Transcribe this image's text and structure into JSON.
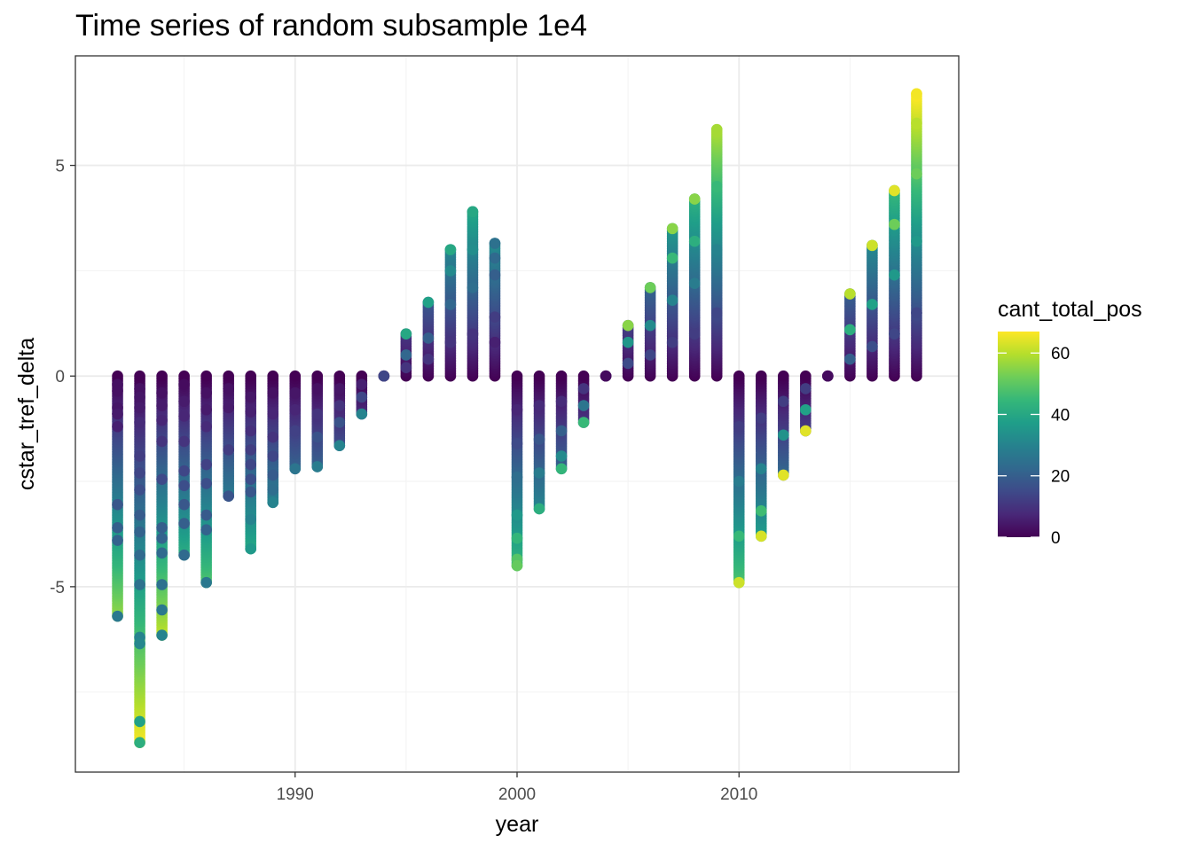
{
  "chart_data": {
    "type": "scatter",
    "title": "Time series of random subsample 1e4",
    "xlabel": "year",
    "ylabel": "cstar_tref_delta",
    "xlim": [
      1980.1,
      2019.9
    ],
    "ylim": [
      -9.4,
      7.6
    ],
    "x_ticks": [
      1990,
      2000,
      2010
    ],
    "x_tick_labels": [
      "1990",
      "2000",
      "2010"
    ],
    "y_ticks": [
      -5,
      0,
      5
    ],
    "y_tick_labels": [
      "-5",
      "0",
      "5"
    ],
    "grid": true,
    "legend": {
      "title": "cant_total_pos",
      "position": "right",
      "range": [
        0,
        67
      ],
      "breaks": [
        0,
        20,
        40,
        60
      ],
      "break_labels": [
        "0",
        "20",
        "40",
        "60"
      ],
      "palette": [
        "#440154",
        "#482878",
        "#3E4A89",
        "#31688E",
        "#26828E",
        "#1F9E89",
        "#35B779",
        "#6DCD59",
        "#B4DE2C",
        "#FDE725"
      ]
    },
    "year_extent": [
      {
        "year": 1982,
        "min": -5.7,
        "max": 0.0
      },
      {
        "year": 1983,
        "min": -8.7,
        "max": 0.0
      },
      {
        "year": 1984,
        "min": -6.15,
        "max": 0.0
      },
      {
        "year": 1985,
        "min": -4.25,
        "max": 0.0
      },
      {
        "year": 1986,
        "min": -4.9,
        "max": 0.0
      },
      {
        "year": 1987,
        "min": -2.85,
        "max": 0.0
      },
      {
        "year": 1988,
        "min": -4.1,
        "max": 0.0
      },
      {
        "year": 1989,
        "min": -3.0,
        "max": 0.0
      },
      {
        "year": 1990,
        "min": -2.2,
        "max": 0.0
      },
      {
        "year": 1991,
        "min": -2.15,
        "max": 0.0
      },
      {
        "year": 1992,
        "min": -1.65,
        "max": 0.0
      },
      {
        "year": 1993,
        "min": -0.9,
        "max": 0.0
      },
      {
        "year": 1994,
        "min": 0.0,
        "max": 0.0
      },
      {
        "year": 1995,
        "min": 0.0,
        "max": 1.0
      },
      {
        "year": 1996,
        "min": 0.0,
        "max": 1.75
      },
      {
        "year": 1997,
        "min": 0.0,
        "max": 3.0
      },
      {
        "year": 1998,
        "min": 0.0,
        "max": 3.9
      },
      {
        "year": 1999,
        "min": 0.0,
        "max": 3.15
      },
      {
        "year": 2000,
        "min": -4.5,
        "max": 0.0
      },
      {
        "year": 2001,
        "min": -3.15,
        "max": 0.0
      },
      {
        "year": 2002,
        "min": -2.2,
        "max": 0.0
      },
      {
        "year": 2003,
        "min": -1.1,
        "max": 0.0
      },
      {
        "year": 2004,
        "min": 0.0,
        "max": 0.0
      },
      {
        "year": 2005,
        "min": 0.0,
        "max": 1.2
      },
      {
        "year": 2006,
        "min": 0.0,
        "max": 2.1
      },
      {
        "year": 2007,
        "min": 0.0,
        "max": 3.5
      },
      {
        "year": 2008,
        "min": 0.0,
        "max": 4.2
      },
      {
        "year": 2009,
        "min": 0.0,
        "max": 5.85
      },
      {
        "year": 2010,
        "min": -4.9,
        "max": 0.0
      },
      {
        "year": 2011,
        "min": -3.8,
        "max": 0.0
      },
      {
        "year": 2012,
        "min": -2.35,
        "max": 0.0
      },
      {
        "year": 2013,
        "min": -1.3,
        "max": 0.0
      },
      {
        "year": 2014,
        "min": 0.0,
        "max": 0.0
      },
      {
        "year": 2015,
        "min": 0.0,
        "max": 1.95
      },
      {
        "year": 2016,
        "min": 0.0,
        "max": 3.1
      },
      {
        "year": 2017,
        "min": 0.0,
        "max": 4.4
      },
      {
        "year": 2018,
        "min": 0.0,
        "max": 6.7
      }
    ],
    "points": [
      {
        "x": 1982,
        "y": -0.2,
        "c": 3
      },
      {
        "x": 1982,
        "y": -0.35,
        "c": 3
      },
      {
        "x": 1982,
        "y": -0.75,
        "c": 4
      },
      {
        "x": 1982,
        "y": -0.9,
        "c": 5
      },
      {
        "x": 1982,
        "y": -1.2,
        "c": 6
      },
      {
        "x": 1982,
        "y": -3.05,
        "c": 18
      },
      {
        "x": 1982,
        "y": -3.6,
        "c": 20
      },
      {
        "x": 1982,
        "y": -3.9,
        "c": 21
      },
      {
        "x": 1982,
        "y": -5.7,
        "c": 27
      },
      {
        "x": 1983,
        "y": -0.3,
        "c": 3
      },
      {
        "x": 1983,
        "y": -0.5,
        "c": 4
      },
      {
        "x": 1983,
        "y": -0.75,
        "c": 5
      },
      {
        "x": 1983,
        "y": -1.1,
        "c": 8
      },
      {
        "x": 1983,
        "y": -1.9,
        "c": 12
      },
      {
        "x": 1983,
        "y": -2.3,
        "c": 14
      },
      {
        "x": 1983,
        "y": -2.7,
        "c": 16
      },
      {
        "x": 1983,
        "y": -3.3,
        "c": 19
      },
      {
        "x": 1983,
        "y": -3.7,
        "c": 21
      },
      {
        "x": 1983,
        "y": -4.25,
        "c": 23
      },
      {
        "x": 1983,
        "y": -4.95,
        "c": 25
      },
      {
        "x": 1983,
        "y": -6.2,
        "c": 30
      },
      {
        "x": 1983,
        "y": -6.35,
        "c": 31
      },
      {
        "x": 1983,
        "y": -8.2,
        "c": 38
      },
      {
        "x": 1983,
        "y": -8.7,
        "c": 42
      },
      {
        "x": 1984,
        "y": -0.4,
        "c": 3
      },
      {
        "x": 1984,
        "y": -0.7,
        "c": 5
      },
      {
        "x": 1984,
        "y": -1.05,
        "c": 7
      },
      {
        "x": 1984,
        "y": -1.55,
        "c": 10
      },
      {
        "x": 1984,
        "y": -2.45,
        "c": 15
      },
      {
        "x": 1984,
        "y": -3.6,
        "c": 20
      },
      {
        "x": 1984,
        "y": -3.85,
        "c": 21
      },
      {
        "x": 1984,
        "y": -4.2,
        "c": 23
      },
      {
        "x": 1984,
        "y": -4.95,
        "c": 25
      },
      {
        "x": 1984,
        "y": -5.55,
        "c": 27
      },
      {
        "x": 1984,
        "y": -6.15,
        "c": 30
      },
      {
        "x": 1985,
        "y": -0.2,
        "c": 2
      },
      {
        "x": 1985,
        "y": -0.6,
        "c": 5
      },
      {
        "x": 1985,
        "y": -0.95,
        "c": 7
      },
      {
        "x": 1985,
        "y": -1.55,
        "c": 10
      },
      {
        "x": 1985,
        "y": -2.25,
        "c": 14
      },
      {
        "x": 1985,
        "y": -2.6,
        "c": 16
      },
      {
        "x": 1985,
        "y": -3.05,
        "c": 18
      },
      {
        "x": 1985,
        "y": -3.5,
        "c": 20
      },
      {
        "x": 1985,
        "y": -4.25,
        "c": 23
      },
      {
        "x": 1986,
        "y": -0.4,
        "c": 3
      },
      {
        "x": 1986,
        "y": -0.8,
        "c": 5
      },
      {
        "x": 1986,
        "y": -1.2,
        "c": 8
      },
      {
        "x": 1986,
        "y": -2.1,
        "c": 13
      },
      {
        "x": 1986,
        "y": -2.55,
        "c": 16
      },
      {
        "x": 1986,
        "y": -3.3,
        "c": 19
      },
      {
        "x": 1986,
        "y": -3.65,
        "c": 21
      },
      {
        "x": 1986,
        "y": -4.9,
        "c": 27
      },
      {
        "x": 1987,
        "y": -0.3,
        "c": 3
      },
      {
        "x": 1987,
        "y": -0.75,
        "c": 5
      },
      {
        "x": 1987,
        "y": -1.75,
        "c": 12
      },
      {
        "x": 1987,
        "y": -2.85,
        "c": 17
      },
      {
        "x": 1988,
        "y": -0.5,
        "c": 4
      },
      {
        "x": 1988,
        "y": -0.85,
        "c": 6
      },
      {
        "x": 1988,
        "y": -1.3,
        "c": 9
      },
      {
        "x": 1988,
        "y": -1.75,
        "c": 12
      },
      {
        "x": 1988,
        "y": -2.1,
        "c": 14
      },
      {
        "x": 1988,
        "y": -2.45,
        "c": 16
      },
      {
        "x": 1988,
        "y": -2.75,
        "c": 18
      },
      {
        "x": 1988,
        "y": -3.4,
        "c": 30
      },
      {
        "x": 1988,
        "y": -4.1,
        "c": 36
      },
      {
        "x": 1989,
        "y": -0.4,
        "c": 3
      },
      {
        "x": 1989,
        "y": -0.9,
        "c": 7
      },
      {
        "x": 1989,
        "y": -1.45,
        "c": 10
      },
      {
        "x": 1989,
        "y": -1.9,
        "c": 14
      },
      {
        "x": 1989,
        "y": -2.35,
        "c": 19
      },
      {
        "x": 1989,
        "y": -2.7,
        "c": 24
      },
      {
        "x": 1989,
        "y": -3.0,
        "c": 30
      },
      {
        "x": 1990,
        "y": -0.4,
        "c": 4
      },
      {
        "x": 1990,
        "y": -0.8,
        "c": 7
      },
      {
        "x": 1990,
        "y": -1.3,
        "c": 13
      },
      {
        "x": 1990,
        "y": -2.2,
        "c": 26
      },
      {
        "x": 1991,
        "y": -0.3,
        "c": 3
      },
      {
        "x": 1991,
        "y": -0.9,
        "c": 10
      },
      {
        "x": 1991,
        "y": -1.45,
        "c": 17
      },
      {
        "x": 1991,
        "y": -2.15,
        "c": 28
      },
      {
        "x": 1992,
        "y": -0.3,
        "c": 4
      },
      {
        "x": 1992,
        "y": -0.7,
        "c": 10
      },
      {
        "x": 1992,
        "y": -1.1,
        "c": 17
      },
      {
        "x": 1992,
        "y": -1.65,
        "c": 30
      },
      {
        "x": 1993,
        "y": -0.2,
        "c": 6
      },
      {
        "x": 1993,
        "y": -0.5,
        "c": 14
      },
      {
        "x": 1993,
        "y": -0.9,
        "c": 30
      },
      {
        "x": 1994,
        "y": 0.0,
        "c": 14
      },
      {
        "x": 1995,
        "y": 0.2,
        "c": 10
      },
      {
        "x": 1995,
        "y": 0.5,
        "c": 22
      },
      {
        "x": 1995,
        "y": 1.0,
        "c": 40
      },
      {
        "x": 1996,
        "y": 0.4,
        "c": 10
      },
      {
        "x": 1996,
        "y": 0.9,
        "c": 20
      },
      {
        "x": 1996,
        "y": 1.75,
        "c": 38
      },
      {
        "x": 1997,
        "y": 0.8,
        "c": 10
      },
      {
        "x": 1997,
        "y": 1.7,
        "c": 22
      },
      {
        "x": 1997,
        "y": 2.5,
        "c": 32
      },
      {
        "x": 1997,
        "y": 3.0,
        "c": 40
      },
      {
        "x": 1998,
        "y": 1.0,
        "c": 10
      },
      {
        "x": 1998,
        "y": 2.1,
        "c": 24
      },
      {
        "x": 1998,
        "y": 3.0,
        "c": 33
      },
      {
        "x": 1998,
        "y": 3.9,
        "c": 40
      },
      {
        "x": 1999,
        "y": 0.8,
        "c": 6
      },
      {
        "x": 1999,
        "y": 1.4,
        "c": 12
      },
      {
        "x": 1999,
        "y": 2.4,
        "c": 20
      },
      {
        "x": 1999,
        "y": 2.8,
        "c": 23
      },
      {
        "x": 1999,
        "y": 3.15,
        "c": 25
      },
      {
        "x": 2000,
        "y": -0.8,
        "c": 7
      },
      {
        "x": 2000,
        "y": -1.6,
        "c": 15
      },
      {
        "x": 2000,
        "y": -2.4,
        "c": 24
      },
      {
        "x": 2000,
        "y": -3.3,
        "c": 36
      },
      {
        "x": 2000,
        "y": -3.85,
        "c": 44
      },
      {
        "x": 2000,
        "y": -4.35,
        "c": 49
      },
      {
        "x": 2000,
        "y": -4.5,
        "c": 51
      },
      {
        "x": 2001,
        "y": -0.7,
        "c": 8
      },
      {
        "x": 2001,
        "y": -1.5,
        "c": 18
      },
      {
        "x": 2001,
        "y": -2.3,
        "c": 28
      },
      {
        "x": 2001,
        "y": -3.15,
        "c": 42
      },
      {
        "x": 2002,
        "y": -0.6,
        "c": 8
      },
      {
        "x": 2002,
        "y": -1.3,
        "c": 20
      },
      {
        "x": 2002,
        "y": -1.9,
        "c": 32
      },
      {
        "x": 2002,
        "y": -2.2,
        "c": 44
      },
      {
        "x": 2003,
        "y": -0.3,
        "c": 10
      },
      {
        "x": 2003,
        "y": -0.7,
        "c": 26
      },
      {
        "x": 2003,
        "y": -1.1,
        "c": 45
      },
      {
        "x": 2004,
        "y": 0.0,
        "c": 2
      },
      {
        "x": 2005,
        "y": 0.3,
        "c": 15
      },
      {
        "x": 2005,
        "y": 0.8,
        "c": 35
      },
      {
        "x": 2005,
        "y": 1.2,
        "c": 55
      },
      {
        "x": 2006,
        "y": 0.5,
        "c": 14
      },
      {
        "x": 2006,
        "y": 1.2,
        "c": 32
      },
      {
        "x": 2006,
        "y": 2.1,
        "c": 52
      },
      {
        "x": 2007,
        "y": 0.8,
        "c": 12
      },
      {
        "x": 2007,
        "y": 1.8,
        "c": 30
      },
      {
        "x": 2007,
        "y": 2.8,
        "c": 45
      },
      {
        "x": 2007,
        "y": 3.5,
        "c": 55
      },
      {
        "x": 2008,
        "y": 1.0,
        "c": 12
      },
      {
        "x": 2008,
        "y": 2.2,
        "c": 28
      },
      {
        "x": 2008,
        "y": 3.2,
        "c": 42
      },
      {
        "x": 2008,
        "y": 4.2,
        "c": 55
      },
      {
        "x": 2009,
        "y": 1.5,
        "c": 14
      },
      {
        "x": 2009,
        "y": 3.0,
        "c": 30
      },
      {
        "x": 2009,
        "y": 4.5,
        "c": 45
      },
      {
        "x": 2009,
        "y": 5.85,
        "c": 58
      },
      {
        "x": 2010,
        "y": -1.2,
        "c": 12
      },
      {
        "x": 2010,
        "y": -2.5,
        "c": 28
      },
      {
        "x": 2010,
        "y": -3.8,
        "c": 45
      },
      {
        "x": 2010,
        "y": -4.9,
        "c": 62
      },
      {
        "x": 2011,
        "y": -1.0,
        "c": 12
      },
      {
        "x": 2011,
        "y": -2.2,
        "c": 30
      },
      {
        "x": 2011,
        "y": -3.2,
        "c": 46
      },
      {
        "x": 2011,
        "y": -3.8,
        "c": 63
      },
      {
        "x": 2012,
        "y": -0.6,
        "c": 12
      },
      {
        "x": 2012,
        "y": -1.4,
        "c": 34
      },
      {
        "x": 2012,
        "y": -2.35,
        "c": 64
      },
      {
        "x": 2013,
        "y": -0.3,
        "c": 12
      },
      {
        "x": 2013,
        "y": -0.8,
        "c": 38
      },
      {
        "x": 2013,
        "y": -1.3,
        "c": 64
      },
      {
        "x": 2014,
        "y": 0.0,
        "c": 2
      },
      {
        "x": 2015,
        "y": 0.4,
        "c": 20
      },
      {
        "x": 2015,
        "y": 1.1,
        "c": 42
      },
      {
        "x": 2015,
        "y": 1.95,
        "c": 60
      },
      {
        "x": 2016,
        "y": 0.7,
        "c": 16
      },
      {
        "x": 2016,
        "y": 1.7,
        "c": 38
      },
      {
        "x": 2016,
        "y": 3.1,
        "c": 62
      },
      {
        "x": 2017,
        "y": 1.0,
        "c": 14
      },
      {
        "x": 2017,
        "y": 2.4,
        "c": 36
      },
      {
        "x": 2017,
        "y": 3.6,
        "c": 52
      },
      {
        "x": 2017,
        "y": 4.4,
        "c": 64
      },
      {
        "x": 2018,
        "y": 1.5,
        "c": 14
      },
      {
        "x": 2018,
        "y": 3.2,
        "c": 36
      },
      {
        "x": 2018,
        "y": 4.8,
        "c": 52
      },
      {
        "x": 2018,
        "y": 6.0,
        "c": 60
      },
      {
        "x": 2018,
        "y": 6.7,
        "c": 66
      }
    ]
  }
}
